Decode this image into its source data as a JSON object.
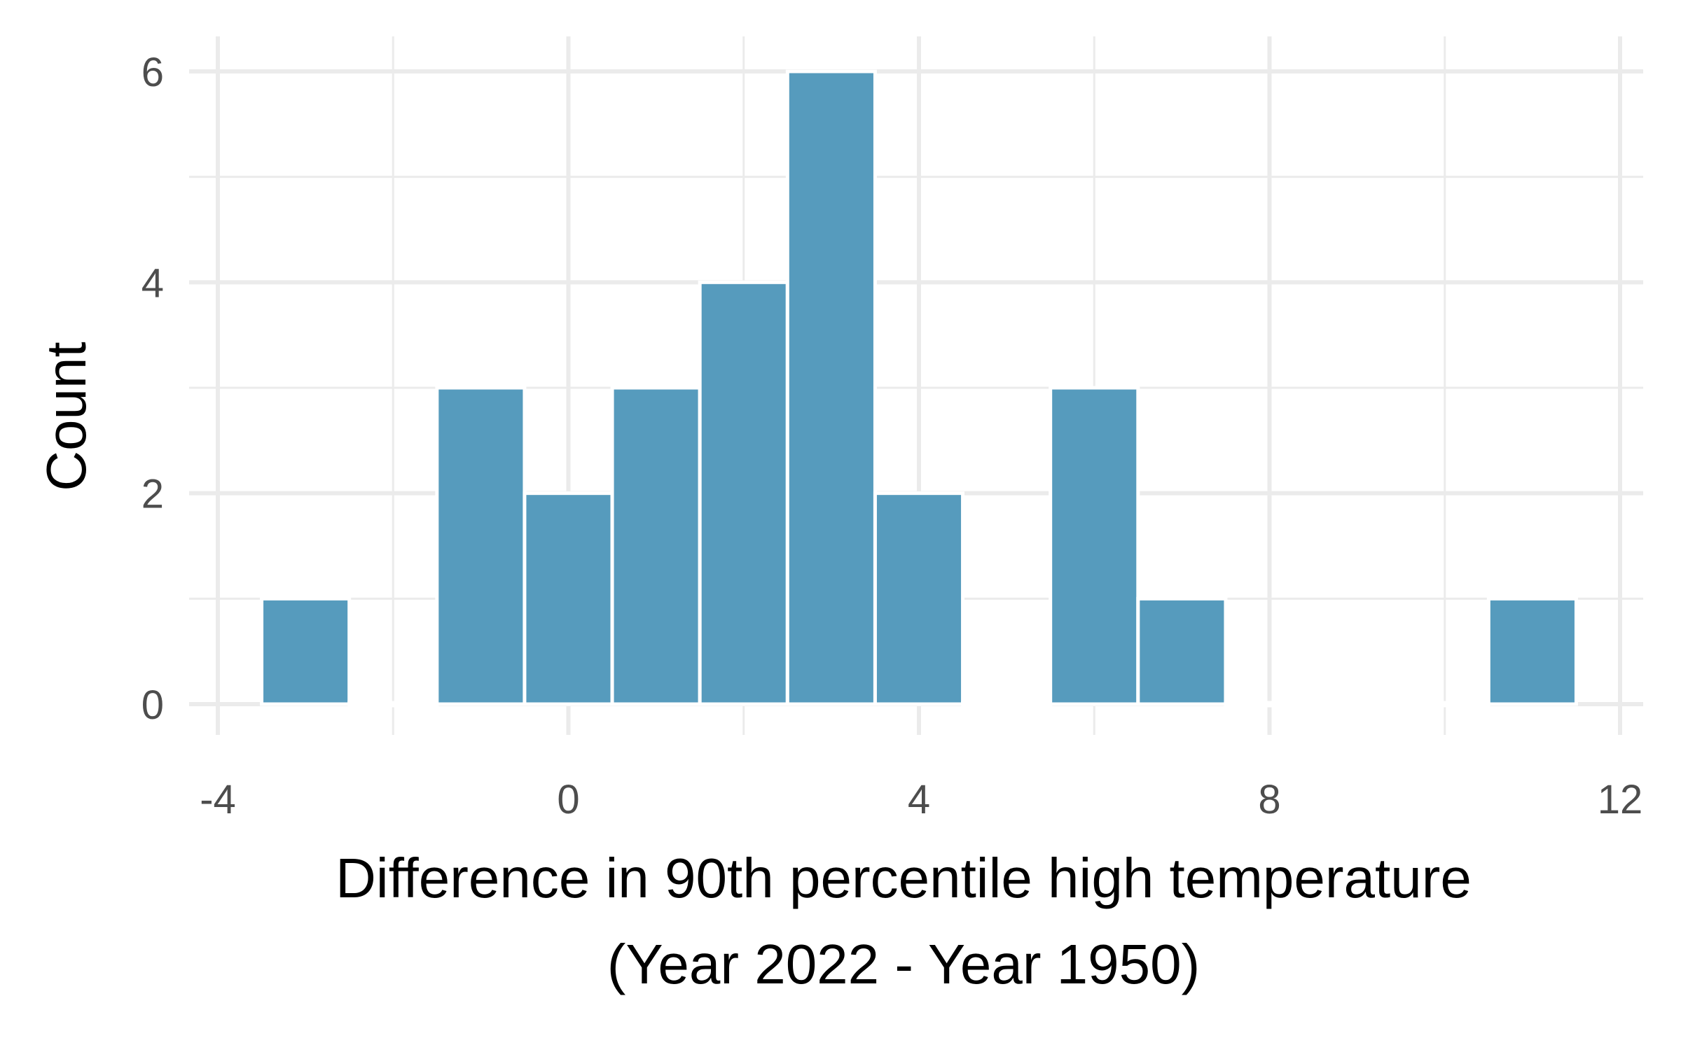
{
  "chart_data": {
    "type": "bar",
    "subtype": "histogram",
    "bin_width": 1,
    "bins": [
      {
        "center": -3,
        "count": 1
      },
      {
        "center": -2,
        "count": 0
      },
      {
        "center": -1,
        "count": 3
      },
      {
        "center": 0,
        "count": 2
      },
      {
        "center": 1,
        "count": 3
      },
      {
        "center": 2,
        "count": 4
      },
      {
        "center": 3,
        "count": 6
      },
      {
        "center": 4,
        "count": 2
      },
      {
        "center": 5,
        "count": 0
      },
      {
        "center": 6,
        "count": 3
      },
      {
        "center": 7,
        "count": 1
      },
      {
        "center": 8,
        "count": 0
      },
      {
        "center": 9,
        "count": 0
      },
      {
        "center": 10,
        "count": 0
      },
      {
        "center": 11,
        "count": 1
      }
    ],
    "xlabel_line1": "Difference in 90th percentile high temperature",
    "xlabel_line2": "(Year 2022 - Year 1950)",
    "ylabel": "Count",
    "xlim": [
      -4,
      12
    ],
    "ylim": [
      0,
      6
    ],
    "x_ticks": [
      -4,
      0,
      4,
      8,
      12
    ],
    "x_tick_labels": [
      "-4",
      "0",
      "4",
      "8",
      "12"
    ],
    "y_ticks": [
      0,
      2,
      4,
      6
    ],
    "y_tick_labels": [
      "0",
      "2",
      "4",
      "6"
    ],
    "grid": true,
    "bar_color": "#569bbd",
    "grid_color": "#ebebeb",
    "background": "#ffffff"
  }
}
